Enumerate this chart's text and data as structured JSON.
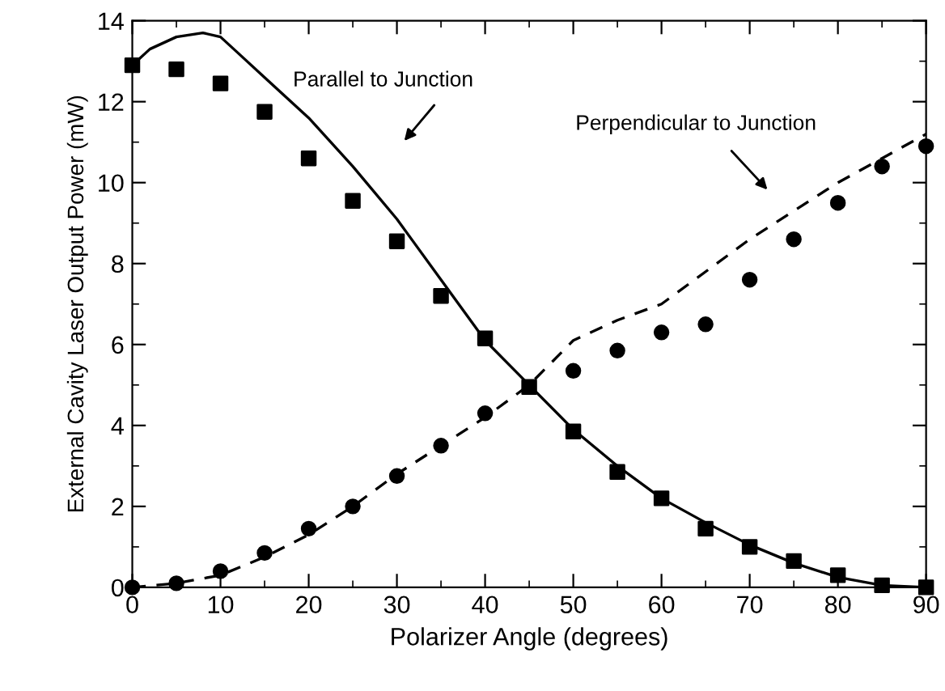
{
  "chart_data": {
    "type": "scatter",
    "xlabel": "Polarizer Angle (degrees)",
    "ylabel": "External Cavity Laser Output Power (mW)",
    "xlim": [
      0,
      90
    ],
    "ylim": [
      0,
      14
    ],
    "xticks": [
      0,
      10,
      20,
      30,
      40,
      50,
      60,
      70,
      80,
      90
    ],
    "yticks": [
      0,
      2,
      4,
      6,
      8,
      10,
      12,
      14
    ],
    "grid": false,
    "legend": false,
    "series": [
      {
        "marker": "square",
        "color": "#000000",
        "x": [
          0,
          5,
          10,
          15,
          20,
          25,
          30,
          35,
          40,
          45,
          50,
          55,
          60,
          65,
          70,
          75,
          80,
          85,
          90
        ],
        "values": [
          12.9,
          12.8,
          12.45,
          11.75,
          10.6,
          9.55,
          8.55,
          7.2,
          6.15,
          4.95,
          3.85,
          2.85,
          2.2,
          1.45,
          1.0,
          0.65,
          0.3,
          0.05,
          0.0
        ]
      },
      {
        "marker": "circle",
        "color": "#000000",
        "x": [
          0,
          5,
          10,
          15,
          20,
          25,
          30,
          35,
          40,
          45,
          50,
          55,
          60,
          65,
          70,
          75,
          80,
          85,
          90
        ],
        "values": [
          0,
          0.1,
          0.4,
          0.85,
          1.45,
          2.0,
          2.75,
          3.5,
          4.3,
          null,
          5.35,
          5.85,
          6.3,
          6.5,
          7.6,
          8.6,
          9.5,
          10.4,
          10.9
        ]
      },
      {
        "type": "line",
        "line_style": "solid",
        "color": "#000000",
        "x": [
          0,
          2,
          5,
          8,
          10,
          12,
          15,
          20,
          25,
          30,
          35,
          40,
          45,
          50,
          55,
          60,
          65,
          70,
          75,
          80,
          85,
          90
        ],
        "values": [
          12.9,
          13.3,
          13.6,
          13.7,
          13.6,
          13.2,
          12.6,
          11.6,
          10.4,
          9.1,
          7.6,
          6.1,
          5.0,
          3.9,
          3.0,
          2.2,
          1.6,
          1.05,
          0.6,
          0.25,
          0.05,
          0
        ]
      },
      {
        "type": "line",
        "line_style": "dashed",
        "color": "#000000",
        "x": [
          0,
          5,
          10,
          15,
          20,
          25,
          30,
          35,
          40,
          45,
          50,
          55,
          60,
          65,
          70,
          75,
          80,
          85,
          90
        ],
        "values": [
          0,
          0.1,
          0.3,
          0.75,
          1.3,
          2.0,
          2.8,
          3.5,
          4.2,
          5.0,
          6.1,
          6.6,
          7.0,
          7.8,
          8.6,
          9.3,
          10.0,
          10.6,
          11.2
        ]
      }
    ],
    "annotations": [
      "Parallel to Junction",
      "Perpendicular to Junction"
    ]
  }
}
